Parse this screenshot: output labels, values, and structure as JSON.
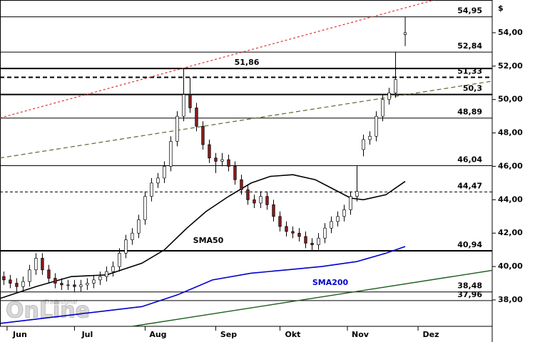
{
  "chart_data": {
    "type": "candlestick",
    "y_unit": "$",
    "logo": {
      "brand": "Tradesignal",
      "name": "OnLine"
    },
    "xlim": [
      -6.2,
      147.1
    ],
    "xticks": [
      {
        "value": 0,
        "label": "Jun"
      },
      {
        "value": 21,
        "label": "Jul"
      },
      {
        "value": 43,
        "label": "Aug"
      },
      {
        "value": 65,
        "label": "Sep"
      },
      {
        "value": 85,
        "label": "Okt"
      },
      {
        "value": 106,
        "label": "Nov"
      },
      {
        "value": 128,
        "label": "Dez"
      }
    ],
    "ylim": [
      36.42,
      55.96
    ],
    "yticks": [
      {
        "value": 38,
        "label": "38,00"
      },
      {
        "value": 40,
        "label": "40,00"
      },
      {
        "value": 42,
        "label": "42,00"
      },
      {
        "value": 44,
        "label": "44,00"
      },
      {
        "value": 46,
        "label": "46,00"
      },
      {
        "value": 48,
        "label": "48,00"
      },
      {
        "value": 50,
        "label": "50,00"
      },
      {
        "value": 52,
        "label": "52,00"
      },
      {
        "value": 54,
        "label": "54,00"
      }
    ],
    "up_color": "#ffffff",
    "down_color": "#8b1a1a",
    "candles": {
      "x": [
        -5,
        -3,
        -1,
        1,
        3,
        5,
        7,
        9,
        11,
        13,
        15,
        17,
        19,
        21,
        23,
        25,
        27,
        29,
        31,
        33,
        35,
        37,
        39,
        41,
        43,
        45,
        47,
        49,
        51,
        53,
        55,
        57,
        59,
        61,
        63,
        65,
        67,
        69,
        71,
        73,
        75,
        77,
        79,
        81,
        83,
        85,
        87,
        89,
        91,
        93,
        95,
        97,
        99,
        101,
        103,
        105,
        107,
        109,
        111,
        113,
        115,
        117,
        120
      ],
      "open": [
        39.4,
        39.2,
        39.0,
        38.8,
        39.1,
        39.8,
        40.5,
        39.8,
        39.3,
        39.0,
        38.9,
        38.9,
        38.8,
        38.9,
        39.0,
        39.2,
        39.4,
        39.7,
        40.0,
        40.8,
        41.6,
        42.0,
        42.8,
        44.2,
        45.0,
        45.3,
        46.0,
        47.5,
        49.0,
        50.3,
        49.5,
        48.4,
        47.3,
        46.5,
        46.3,
        46.4,
        46.0,
        45.2,
        44.6,
        44.0,
        43.8,
        44.2,
        43.7,
        43.0,
        42.4,
        42.1,
        42.0,
        41.8,
        41.4,
        41.3,
        41.7,
        42.3,
        42.7,
        43.0,
        43.4,
        44.2,
        47.0,
        47.6,
        47.8,
        49.0,
        50.0,
        50.4,
        53.9
      ],
      "high": [
        39.7,
        39.5,
        39.3,
        39.4,
        40.1,
        40.8,
        40.8,
        40.1,
        39.6,
        39.3,
        39.2,
        39.2,
        39.2,
        39.3,
        39.5,
        39.7,
        40.0,
        40.3,
        41.1,
        41.9,
        42.3,
        43.1,
        44.5,
        45.3,
        45.6,
        46.3,
        47.8,
        49.3,
        51.86,
        51.3,
        49.8,
        48.7,
        47.6,
        46.8,
        46.8,
        46.7,
        46.3,
        45.5,
        44.9,
        44.3,
        44.5,
        44.5,
        44.0,
        43.3,
        42.7,
        42.4,
        42.3,
        42.1,
        41.7,
        42.0,
        42.6,
        43.0,
        43.3,
        43.7,
        44.5,
        46.04,
        47.9,
        48.1,
        49.3,
        50.3,
        50.7,
        52.84,
        54.95
      ],
      "low": [
        38.9,
        38.7,
        38.5,
        38.5,
        38.8,
        39.5,
        39.5,
        39.0,
        38.7,
        38.6,
        38.6,
        38.5,
        38.5,
        38.6,
        38.7,
        38.9,
        39.1,
        39.4,
        39.7,
        40.5,
        41.3,
        41.7,
        42.5,
        43.9,
        44.7,
        45.0,
        45.7,
        47.2,
        48.7,
        49.2,
        48.1,
        47.0,
        46.2,
        45.6,
        46.0,
        45.7,
        44.9,
        44.3,
        43.7,
        43.5,
        43.5,
        43.4,
        42.7,
        42.1,
        41.8,
        41.7,
        41.5,
        41.1,
        40.94,
        41.0,
        41.4,
        42.0,
        42.4,
        42.7,
        43.1,
        43.9,
        46.6,
        47.3,
        47.5,
        48.7,
        49.7,
        50.1,
        53.2
      ],
      "close": [
        39.2,
        39.0,
        38.8,
        39.1,
        39.8,
        40.5,
        39.8,
        39.3,
        39.0,
        38.9,
        38.9,
        38.8,
        38.9,
        39.0,
        39.2,
        39.4,
        39.7,
        40.0,
        40.8,
        41.6,
        42.0,
        42.8,
        44.2,
        45.0,
        45.3,
        46.0,
        47.5,
        49.0,
        50.3,
        49.5,
        48.4,
        47.3,
        46.5,
        46.3,
        46.4,
        46.0,
        45.2,
        44.6,
        44.0,
        43.8,
        44.2,
        43.7,
        43.0,
        42.4,
        42.1,
        42.0,
        41.8,
        41.4,
        41.3,
        41.7,
        42.3,
        42.7,
        43.0,
        43.4,
        44.2,
        44.5,
        47.6,
        47.8,
        49.0,
        50.0,
        50.4,
        51.2,
        54.0
      ]
    },
    "series": [
      {
        "name": "SMA50",
        "color": "#000000",
        "x": [
          -6,
          5,
          16,
          27,
          38,
          45,
          52,
          58,
          65,
          72,
          78,
          85,
          92,
          98,
          103,
          107,
          114,
          120
        ],
        "values": [
          38.1,
          38.8,
          39.4,
          39.5,
          40.2,
          41.0,
          42.3,
          43.3,
          44.2,
          45.0,
          45.4,
          45.5,
          45.2,
          44.6,
          44.1,
          44.0,
          44.3,
          45.1
        ]
      },
      {
        "name": "SMA200",
        "color": "#0000cc",
        "x": [
          -6,
          16,
          38,
          49,
          60,
          72,
          83,
          94,
          105,
          114,
          120
        ],
        "values": [
          36.6,
          37.1,
          37.6,
          38.3,
          39.2,
          39.6,
          39.8,
          40.0,
          40.3,
          40.8,
          41.2
        ]
      }
    ],
    "trendlines": [
      {
        "color": "#1a5c1a",
        "style": "solid",
        "x": [
          35,
          147.1
        ],
        "values": [
          36.42,
          39.77
        ]
      },
      {
        "color": "#e03030",
        "style": "dotted",
        "x": [
          -6.2,
          129
        ],
        "values": [
          48.9,
          55.96
        ]
      },
      {
        "color": "#556b2f",
        "style": "dashed",
        "x": [
          -6.2,
          147.1
        ],
        "values": [
          46.5,
          51.1
        ]
      }
    ],
    "levels": [
      {
        "value": 54.95,
        "label": "54,95",
        "style": "thin"
      },
      {
        "value": 52.84,
        "label": "52,84",
        "style": "thin"
      },
      {
        "value": 51.86,
        "label": "51,86",
        "style": "thick"
      },
      {
        "value": 51.33,
        "label": "51,33",
        "style": "thick-dashed"
      },
      {
        "value": 50.3,
        "label": "50,3",
        "style": "thick"
      },
      {
        "value": 48.89,
        "label": "48,89",
        "style": "thin"
      },
      {
        "value": 46.04,
        "label": "46,04",
        "style": "thin"
      },
      {
        "value": 44.47,
        "label": "44,47",
        "style": "dashed"
      },
      {
        "value": 40.94,
        "label": "40,94",
        "style": "thick"
      },
      {
        "value": 38.48,
        "label": "38,48",
        "style": "thin"
      },
      {
        "value": 37.96,
        "label": "37,96",
        "style": "thin"
      }
    ]
  }
}
